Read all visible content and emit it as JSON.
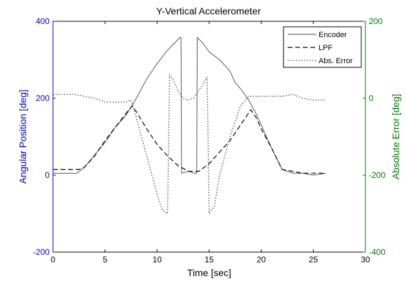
{
  "chart_data": {
    "type": "line",
    "title": "Y-Vertical Accelerometer",
    "xlabel": "Time [sec]",
    "ylabel_left": "Angular Position [deg]",
    "ylabel_right": "Absolute Error [deg]",
    "xlim": [
      0,
      30
    ],
    "ylim_left": [
      -200,
      400
    ],
    "ylim_right": [
      -400,
      200
    ],
    "x_ticks": [
      "0",
      "5",
      "10",
      "15",
      "20",
      "25",
      "30"
    ],
    "y_ticks_left": [
      "-200",
      "0",
      "200",
      "400"
    ],
    "y_ticks_right": [
      "-400",
      "-200",
      "0",
      "200"
    ],
    "grid": false,
    "legend_position": "top-right",
    "colors": {
      "left_axis": "#0000cc",
      "right_axis": "#007700",
      "lines": "#444444"
    },
    "series": [
      {
        "name": "Encoder",
        "axis": "left",
        "style": "solid",
        "x": [
          0,
          2.3,
          3,
          5,
          6,
          7,
          7.8,
          9,
          10,
          11,
          12.2,
          12.3,
          12.35,
          13,
          13.6,
          13.8,
          13.85,
          14.5,
          15,
          16,
          17,
          17.5,
          18,
          18.8,
          19.5,
          20,
          21,
          22,
          23,
          24,
          25,
          26.2
        ],
        "y": [
          5,
          5,
          20,
          85,
          125,
          155,
          190,
          250,
          290,
          325,
          358,
          358,
          5,
          10,
          5,
          5,
          358,
          340,
          320,
          300,
          270,
          240,
          225,
          195,
          160,
          130,
          70,
          15,
          5,
          5,
          0,
          5
        ]
      },
      {
        "name": "LPF",
        "axis": "left",
        "style": "dashed",
        "x": [
          0,
          2.5,
          3,
          4,
          5,
          6,
          7,
          7.6,
          8,
          9,
          10,
          11,
          12,
          13,
          14,
          15,
          16,
          17,
          18,
          19,
          19.5,
          20,
          21,
          22,
          23,
          24,
          25,
          26.2
        ],
        "y": [
          15,
          15,
          20,
          50,
          90,
          125,
          160,
          180,
          165,
          120,
          80,
          50,
          25,
          10,
          10,
          30,
          60,
          90,
          130,
          170,
          150,
          120,
          70,
          15,
          10,
          5,
          5,
          5
        ]
      },
      {
        "name": "Abs. Error",
        "axis": "right",
        "style": "dotted",
        "x": [
          0,
          2,
          3,
          4,
          5,
          6,
          7,
          7.5,
          8,
          9,
          10,
          10.5,
          11,
          11.2,
          11.5,
          12,
          12.5,
          13,
          13.5,
          14,
          14.5,
          14.8,
          15,
          15.5,
          16,
          17,
          18,
          18.8,
          19,
          20,
          21,
          22,
          23,
          24,
          25,
          26.2
        ],
        "y": [
          10,
          10,
          5,
          0,
          -10,
          -10,
          -10,
          -5,
          -50,
          -150,
          -250,
          -290,
          -300,
          60,
          50,
          20,
          0,
          -5,
          0,
          20,
          40,
          55,
          -300,
          -280,
          -200,
          -100,
          -20,
          5,
          5,
          5,
          5,
          5,
          10,
          0,
          -5,
          -5
        ]
      }
    ]
  }
}
